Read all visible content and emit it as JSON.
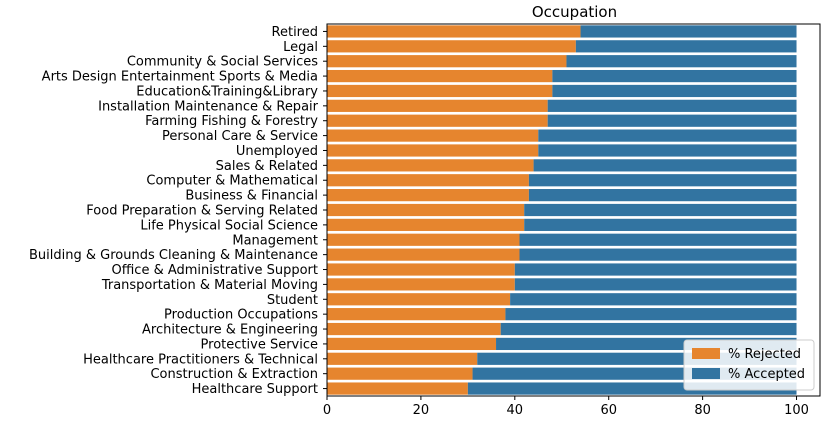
{
  "chart_data": {
    "type": "bar",
    "orientation": "horizontal",
    "stacked": true,
    "title": "Occupation",
    "xlabel": "",
    "ylabel": "",
    "xlim": [
      0,
      105
    ],
    "xticks": [
      0,
      20,
      40,
      60,
      80,
      100
    ],
    "grid": false,
    "legend_position": "bottom-right",
    "categories": [
      "Retired",
      "Legal",
      "Community & Social Services",
      "Arts Design Entertainment Sports & Media",
      "Education&Training&Library",
      "Installation Maintenance & Repair",
      "Farming Fishing & Forestry",
      "Personal Care & Service",
      "Unemployed",
      "Sales & Related",
      "Computer & Mathematical",
      "Business & Financial",
      "Food Preparation & Serving Related",
      "Life Physical Social Science",
      "Management",
      "Building & Grounds Cleaning & Maintenance",
      "Office & Administrative Support",
      "Transportation & Material Moving",
      "Student",
      "Production Occupations",
      "Architecture & Engineering",
      "Protective Service",
      "Healthcare Practitioners & Technical",
      "Construction & Extraction",
      "Healthcare Support"
    ],
    "series": [
      {
        "name": "% Rejected",
        "color": "#e6852e",
        "values": [
          54,
          53,
          51,
          48,
          48,
          47,
          47,
          45,
          45,
          44,
          43,
          43,
          42,
          42,
          41,
          41,
          40,
          40,
          39,
          38,
          37,
          36,
          32,
          31,
          30
        ]
      },
      {
        "name": "% Accepted",
        "color": "#3274a1",
        "values": [
          46,
          47,
          49,
          52,
          52,
          53,
          53,
          55,
          55,
          56,
          57,
          57,
          58,
          58,
          59,
          59,
          60,
          60,
          61,
          62,
          63,
          64,
          68,
          69,
          70
        ]
      }
    ]
  }
}
